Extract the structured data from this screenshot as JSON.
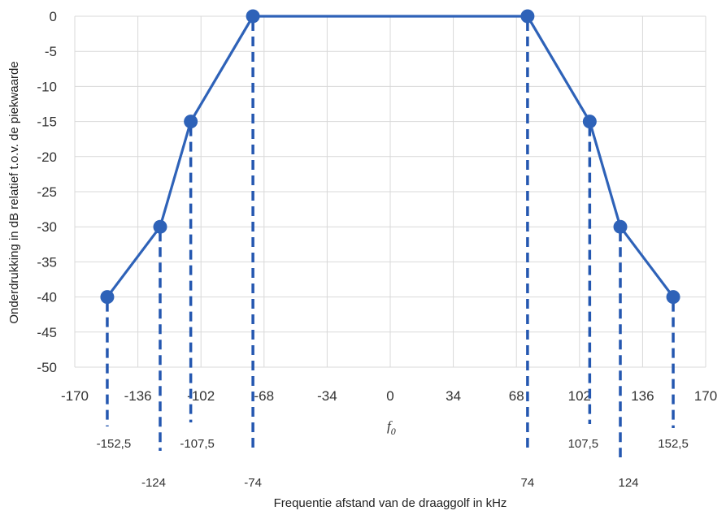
{
  "chart_data": {
    "type": "line",
    "title": "",
    "xlabel": "Frequentie afstand van de draaggolf in kHz",
    "ylabel": "Onderdrukking in dB relatief t.o.v. de piekwaarde",
    "xlim": [
      -170,
      170
    ],
    "ylim": [
      -50,
      0
    ],
    "x_ticks": [
      -170,
      -136,
      -102,
      -68,
      -34,
      0,
      34,
      68,
      102,
      136,
      170
    ],
    "y_ticks": [
      0,
      -5,
      -10,
      -15,
      -20,
      -25,
      -30,
      -35,
      -40,
      -45,
      -50
    ],
    "grid": true,
    "legend": "none",
    "series": [
      {
        "x": [
          -152.5,
          -124,
          -107.5,
          -74,
          74,
          107.5,
          124,
          152.5
        ],
        "y": [
          -40,
          -30,
          -15,
          0,
          0,
          -15,
          -30,
          -40
        ]
      }
    ],
    "center_label": "f0",
    "annotations": [
      {
        "x": -152.5,
        "label": "-152,5"
      },
      {
        "x": -124,
        "label": "-124"
      },
      {
        "x": -107.5,
        "label": "-107,5"
      },
      {
        "x": -74,
        "label": "-74"
      },
      {
        "x": 74,
        "label": "74"
      },
      {
        "x": 107.5,
        "label": "107,5"
      },
      {
        "x": 124,
        "label": "124"
      },
      {
        "x": 152.5,
        "label": "152,5"
      }
    ],
    "colors": {
      "line": "#2e62b8",
      "marker": "#2e62b8",
      "dash": "#2457b0",
      "grid": "#d9d9d9"
    }
  }
}
